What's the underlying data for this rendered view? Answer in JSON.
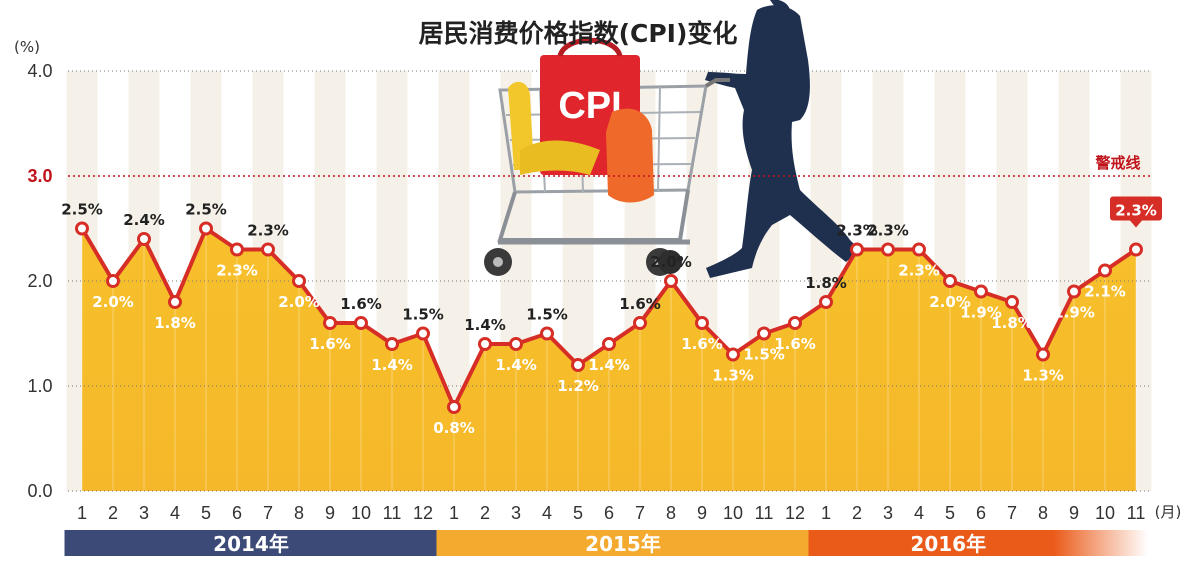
{
  "chart_data": {
    "type": "area",
    "title": "居民消费价格指数(CPI)变化",
    "ylabel": "(%)",
    "xunit": "(月)",
    "ylim": [
      0,
      4
    ],
    "yticks": [
      "0.0",
      "1.0",
      "2.0",
      "3.0",
      "4.0"
    ],
    "alert_line": {
      "value": 3.0,
      "label": "警戒线"
    },
    "categories": [
      "1",
      "2",
      "3",
      "4",
      "5",
      "6",
      "7",
      "8",
      "9",
      "10",
      "11",
      "12",
      "1",
      "2",
      "3",
      "4",
      "5",
      "6",
      "7",
      "8",
      "9",
      "10",
      "11",
      "12",
      "1",
      "2",
      "3",
      "4",
      "5",
      "6",
      "7",
      "8",
      "9",
      "10",
      "11"
    ],
    "values": [
      2.5,
      2.0,
      2.4,
      1.8,
      2.5,
      2.3,
      2.3,
      2.0,
      1.6,
      1.6,
      1.4,
      1.5,
      0.8,
      1.4,
      1.4,
      1.5,
      1.2,
      1.4,
      1.6,
      2.0,
      1.6,
      1.3,
      1.5,
      1.6,
      1.8,
      2.3,
      2.3,
      2.3,
      2.0,
      1.9,
      1.8,
      1.3,
      1.9,
      2.1,
      2.3
    ],
    "data_labels": [
      "2.5%",
      "2.0%",
      "2.4%",
      "1.8%",
      "2.5%",
      "2.3%",
      "2.3%",
      "2.0%",
      "1.6%",
      "1.6%",
      "1.4%",
      "1.5%",
      "0.8%",
      "1.4%",
      "1.4%",
      "1.5%",
      "1.2%",
      "1.4%",
      "1.6%",
      "2.0%",
      "1.6%",
      "1.3%",
      "1.5%",
      "1.6%",
      "1.8%",
      "2.3%",
      "2.3%",
      "2.3%",
      "2.0%",
      "1.9%",
      "1.8%",
      "1.3%",
      "1.9%",
      "2.1%",
      "2.3%"
    ],
    "years": [
      {
        "label": "2014年",
        "start": 0,
        "end": 11,
        "color": "#3c4a78"
      },
      {
        "label": "2015年",
        "start": 12,
        "end": 23,
        "color": "#f4aa2e"
      },
      {
        "label": "2016年",
        "start": 24,
        "end": 34,
        "color": "#ea5a18"
      }
    ],
    "colors": {
      "area": "#f6bd2c",
      "line": "#d62e26",
      "alert": "#c0141c"
    },
    "grid": true
  },
  "illustration": {
    "cart_sign": "CPI"
  }
}
